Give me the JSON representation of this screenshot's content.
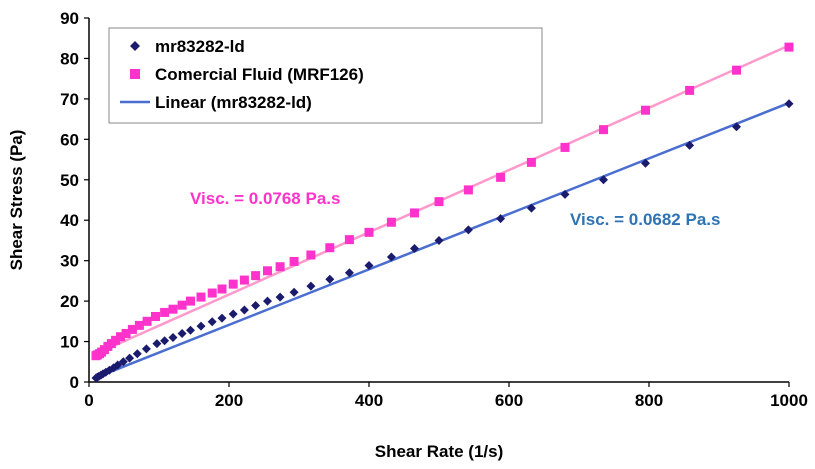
{
  "chart_data": {
    "type": "scatter",
    "xlabel": "Shear Rate (1/s)",
    "ylabel": "Shear Stress (Pa)",
    "xlim": [
      0,
      1000
    ],
    "ylim": [
      0,
      90
    ],
    "x_ticks": [
      "0",
      "200",
      "400",
      "600",
      "800",
      "1000"
    ],
    "y_ticks": [
      "0",
      "10",
      "20",
      "30",
      "40",
      "50",
      "60",
      "70",
      "80",
      "90"
    ],
    "grid": false,
    "legend_position": "top-left",
    "series": [
      {
        "name": "mr83282-ld",
        "marker": "diamond",
        "color": "#1b1b6e",
        "x": [
          10,
          12,
          14,
          17,
          20,
          24,
          29,
          35,
          41,
          49,
          58,
          69,
          82,
          97,
          108,
          120,
          133,
          145,
          160,
          176,
          190,
          206,
          222,
          238,
          255,
          273,
          293,
          317,
          344,
          372,
          400,
          432,
          465,
          500,
          542,
          588,
          632,
          680,
          735,
          795,
          858,
          925,
          1000
        ],
        "y": [
          1.0,
          1.2,
          1.4,
          1.7,
          2.0,
          2.4,
          2.9,
          3.5,
          4.2,
          5.0,
          5.9,
          7.0,
          8.2,
          9.5,
          10.2,
          11.0,
          12.0,
          12.8,
          13.8,
          14.9,
          15.8,
          16.8,
          17.8,
          18.9,
          20.0,
          21.0,
          22.2,
          23.7,
          25.4,
          27.0,
          28.8,
          30.9,
          33.0,
          35.0,
          37.6,
          40.4,
          43.0,
          46.4,
          50.0,
          54.1,
          58.5,
          63.1,
          68.8
        ]
      },
      {
        "name": "Comercial Fluid (MRF126)",
        "marker": "square",
        "color": "#ff33cc",
        "x": [
          10,
          12,
          15,
          18,
          22,
          27,
          32,
          38,
          45,
          53,
          62,
          72,
          83,
          95,
          108,
          120,
          133,
          145,
          160,
          176,
          190,
          206,
          222,
          238,
          255,
          273,
          293,
          317,
          344,
          372,
          400,
          432,
          465,
          500,
          542,
          588,
          632,
          680,
          735,
          795,
          858,
          925,
          1000
        ],
        "y": [
          6.5,
          6.7,
          7.0,
          7.4,
          8.0,
          8.8,
          9.5,
          10.3,
          11.2,
          12.0,
          13.0,
          14.0,
          15.0,
          16.2,
          17.2,
          18.0,
          19.0,
          20.0,
          21.0,
          22.0,
          23.0,
          24.2,
          25.2,
          26.3,
          27.5,
          28.5,
          29.8,
          31.4,
          33.2,
          35.2,
          37.0,
          39.5,
          41.8,
          44.6,
          47.5,
          50.6,
          54.3,
          58.0,
          62.4,
          67.2,
          72.1,
          77.1,
          82.8
        ]
      }
    ],
    "trendlines": [
      {
        "name": "Linear (mr83282-ld)",
        "color": "#4a6ed0",
        "x": [
          10,
          1000
        ],
        "y": [
          1.1,
          69.0
        ]
      },
      {
        "name": "",
        "color": "#ff99cc",
        "x": [
          10,
          1000
        ],
        "y": [
          7.0,
          83.2
        ]
      }
    ],
    "annotations": [
      {
        "text": "Visc. = 0.0768 Pa.s",
        "color": "#ff33cc",
        "x": 135,
        "y": 45
      },
      {
        "text": "Visc. = 0.0682 Pa.s",
        "color": "#2e74b5",
        "x": 690,
        "y": 39
      }
    ]
  }
}
